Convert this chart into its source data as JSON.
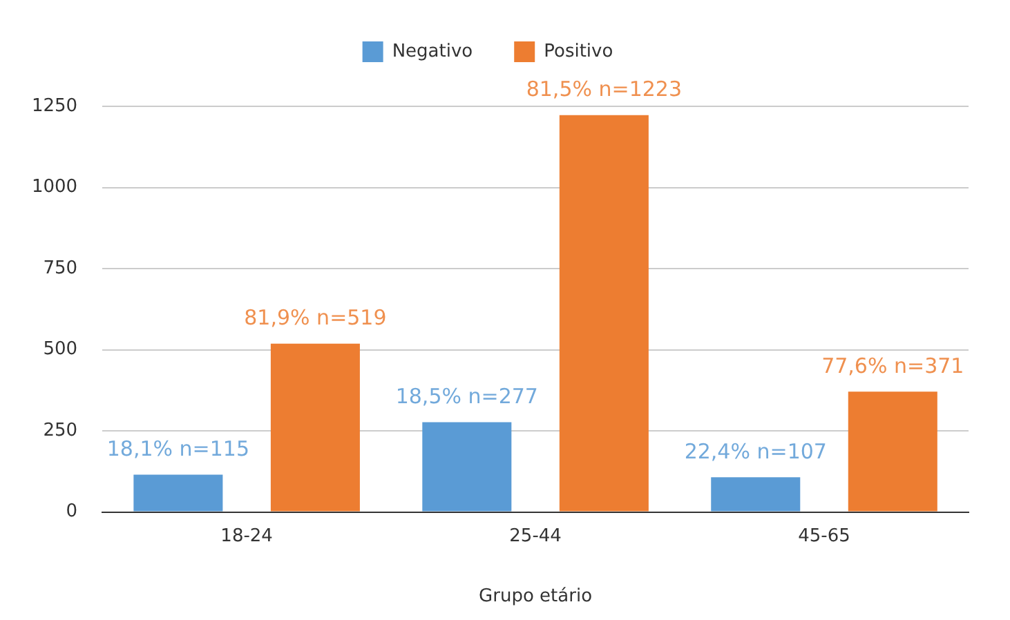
{
  "chart_data": {
    "type": "bar",
    "xlabel": "Grupo etário",
    "categories": [
      "18-24",
      "25-44",
      "45-65"
    ],
    "series": [
      {
        "name": "Negativo",
        "color": "#5a9bd5",
        "values": [
          115,
          277,
          107
        ],
        "value_labels": [
          "18,1% n=115",
          "18,5% n=277",
          "22,4% n=107"
        ]
      },
      {
        "name": "Positivo",
        "color": "#ed7d31",
        "values": [
          519,
          1223,
          371
        ],
        "value_labels": [
          "81,9% n=519",
          "81,5% n=1223",
          "77,6% n=371"
        ]
      }
    ],
    "ylim": [
      0,
      1250
    ],
    "yticks": [
      0,
      250,
      500,
      750,
      1000,
      1250
    ],
    "grid": "y",
    "legend": "top"
  }
}
